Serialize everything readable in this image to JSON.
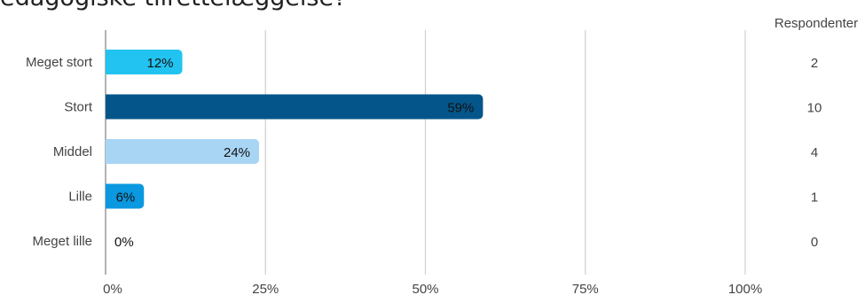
{
  "chart_data": {
    "type": "bar",
    "orientation": "horizontal",
    "title": "edagogiske tilrettelæggelse?",
    "categories": [
      "Meget stort",
      "Stort",
      "Middel",
      "Lille",
      "Meget lille"
    ],
    "values": [
      12,
      59,
      24,
      6,
      0
    ],
    "value_labels": [
      "12%",
      "59%",
      "24%",
      "6%",
      "0%"
    ],
    "counts": [
      2,
      10,
      4,
      1,
      0
    ],
    "counts_header": "Respondenter",
    "xlim": [
      0,
      100
    ],
    "x_ticks": [
      0,
      25,
      50,
      75,
      100
    ],
    "x_tick_labels": [
      "0%",
      "25%",
      "50%",
      "75%",
      "100%"
    ],
    "grid": true,
    "colors": [
      "#22c3f0",
      "#04558a",
      "#a9d5f5",
      "#0a98e0",
      "#22c3f0"
    ],
    "label_colors": [
      "#111111",
      "#111111",
      "#111111",
      "#111111",
      "#111111"
    ]
  }
}
